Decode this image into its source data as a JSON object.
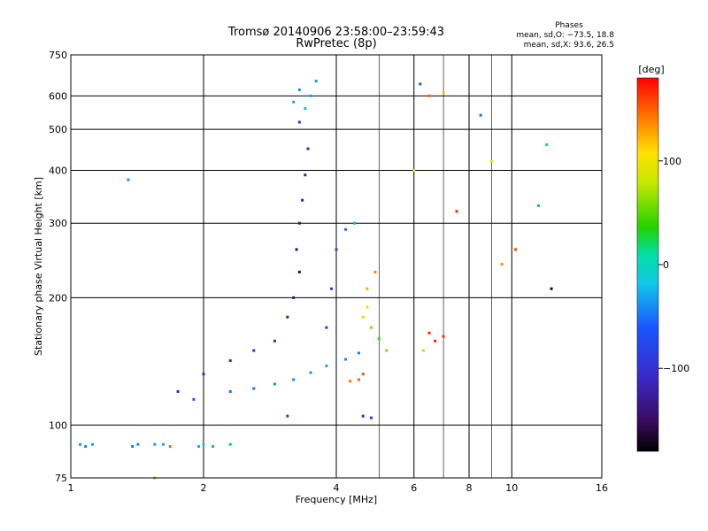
{
  "chart_data": {
    "type": "scatter",
    "title": "Tromsø 20140906 23:58:00–23:59:43",
    "subtitle": "RwPretec (8p)",
    "xlabel": "Frequency [MHz]",
    "ylabel": "Stationary phase Virtual Height [km]",
    "xscale": "log",
    "yscale": "log",
    "xlim": [
      1,
      16
    ],
    "ylim": [
      75,
      750
    ],
    "grid": true,
    "x_ticks": [
      "1",
      "2",
      "4",
      "6",
      "8",
      "10",
      "16"
    ],
    "x_tick_values": [
      1,
      2,
      4,
      6,
      8,
      10,
      16
    ],
    "y_ticks": [
      "75",
      "100",
      "200",
      "300",
      "400",
      "500",
      "600",
      "750"
    ],
    "y_tick_values": [
      75,
      100,
      200,
      300,
      400,
      500,
      600,
      750
    ],
    "stats": {
      "title": "Phases",
      "line_o": "mean, sd,O: −73.5, 18.8",
      "line_x": "mean, sd,X:  93.6, 26.5"
    },
    "colorbar": {
      "label": "[deg]",
      "ticks": [
        "100",
        "0",
        "−100"
      ],
      "tick_values": [
        100,
        0,
        -100
      ],
      "range": [
        -180,
        180
      ]
    },
    "series": [
      {
        "values": [
          [
            1.05,
            90,
            -40
          ],
          [
            1.08,
            89,
            -45
          ],
          [
            1.12,
            90,
            -40
          ],
          [
            1.38,
            89,
            -50
          ],
          [
            1.42,
            90,
            -45
          ],
          [
            1.55,
            90,
            -40
          ],
          [
            1.62,
            90,
            -35
          ],
          [
            1.68,
            89,
            150
          ],
          [
            1.95,
            89,
            -30
          ],
          [
            2.0,
            90,
            -20
          ],
          [
            2.1,
            89,
            -30
          ],
          [
            2.3,
            90,
            -30
          ],
          [
            1.55,
            75,
            60
          ],
          [
            1.35,
            380,
            -40
          ],
          [
            3.1,
            105,
            -90
          ],
          [
            1.9,
            115,
            -60
          ],
          [
            2.3,
            120,
            -50
          ],
          [
            2.6,
            122,
            -50
          ],
          [
            2.9,
            125,
            -40
          ],
          [
            3.2,
            128,
            -45
          ],
          [
            3.5,
            133,
            -40
          ],
          [
            3.8,
            138,
            -35
          ],
          [
            4.2,
            143,
            -40
          ],
          [
            4.5,
            148,
            -45
          ],
          [
            1.75,
            120,
            -120
          ],
          [
            2.0,
            132,
            -115
          ],
          [
            2.3,
            142,
            -110
          ],
          [
            2.6,
            150,
            -108
          ],
          [
            2.9,
            158,
            -105
          ],
          [
            3.1,
            180,
            -130
          ],
          [
            3.2,
            200,
            -140
          ],
          [
            3.3,
            230,
            -150
          ],
          [
            3.25,
            260,
            -145
          ],
          [
            3.3,
            300,
            -140
          ],
          [
            3.35,
            340,
            -130
          ],
          [
            3.4,
            390,
            -125
          ],
          [
            3.45,
            450,
            -120
          ],
          [
            3.3,
            520,
            -100
          ],
          [
            3.2,
            580,
            -30
          ],
          [
            3.3,
            620,
            -40
          ],
          [
            3.5,
            600,
            -30
          ],
          [
            3.6,
            650,
            -40
          ],
          [
            3.4,
            560,
            -25
          ],
          [
            3.8,
            170,
            -100
          ],
          [
            3.9,
            210,
            -90
          ],
          [
            4.0,
            260,
            -80
          ],
          [
            4.2,
            290,
            -50
          ],
          [
            4.4,
            300,
            -30
          ],
          [
            4.5,
            128,
            150
          ],
          [
            4.6,
            132,
            155
          ],
          [
            4.3,
            127,
            145
          ],
          [
            4.6,
            180,
            80
          ],
          [
            4.7,
            190,
            100
          ],
          [
            4.8,
            170,
            60
          ],
          [
            5.0,
            160,
            40
          ],
          [
            5.2,
            150,
            60
          ],
          [
            4.7,
            210,
            130
          ],
          [
            4.9,
            230,
            140
          ],
          [
            4.6,
            105,
            -110
          ],
          [
            4.8,
            104,
            -100
          ],
          [
            6.5,
            165,
            170
          ],
          [
            6.7,
            158,
            170
          ],
          [
            7.0,
            162,
            165
          ],
          [
            6.3,
            150,
            120
          ],
          [
            6.2,
            640,
            -60
          ],
          [
            6.5,
            600,
            150
          ],
          [
            7.0,
            610,
            120
          ],
          [
            7.5,
            320,
            170
          ],
          [
            8.5,
            540,
            -50
          ],
          [
            9.0,
            420,
            100
          ],
          [
            9.5,
            240,
            140
          ],
          [
            10.2,
            260,
            160
          ],
          [
            11.5,
            330,
            -30
          ],
          [
            12.0,
            460,
            20
          ],
          [
            12.3,
            210,
            -170
          ],
          [
            6.0,
            400,
            90
          ]
        ]
      }
    ]
  }
}
